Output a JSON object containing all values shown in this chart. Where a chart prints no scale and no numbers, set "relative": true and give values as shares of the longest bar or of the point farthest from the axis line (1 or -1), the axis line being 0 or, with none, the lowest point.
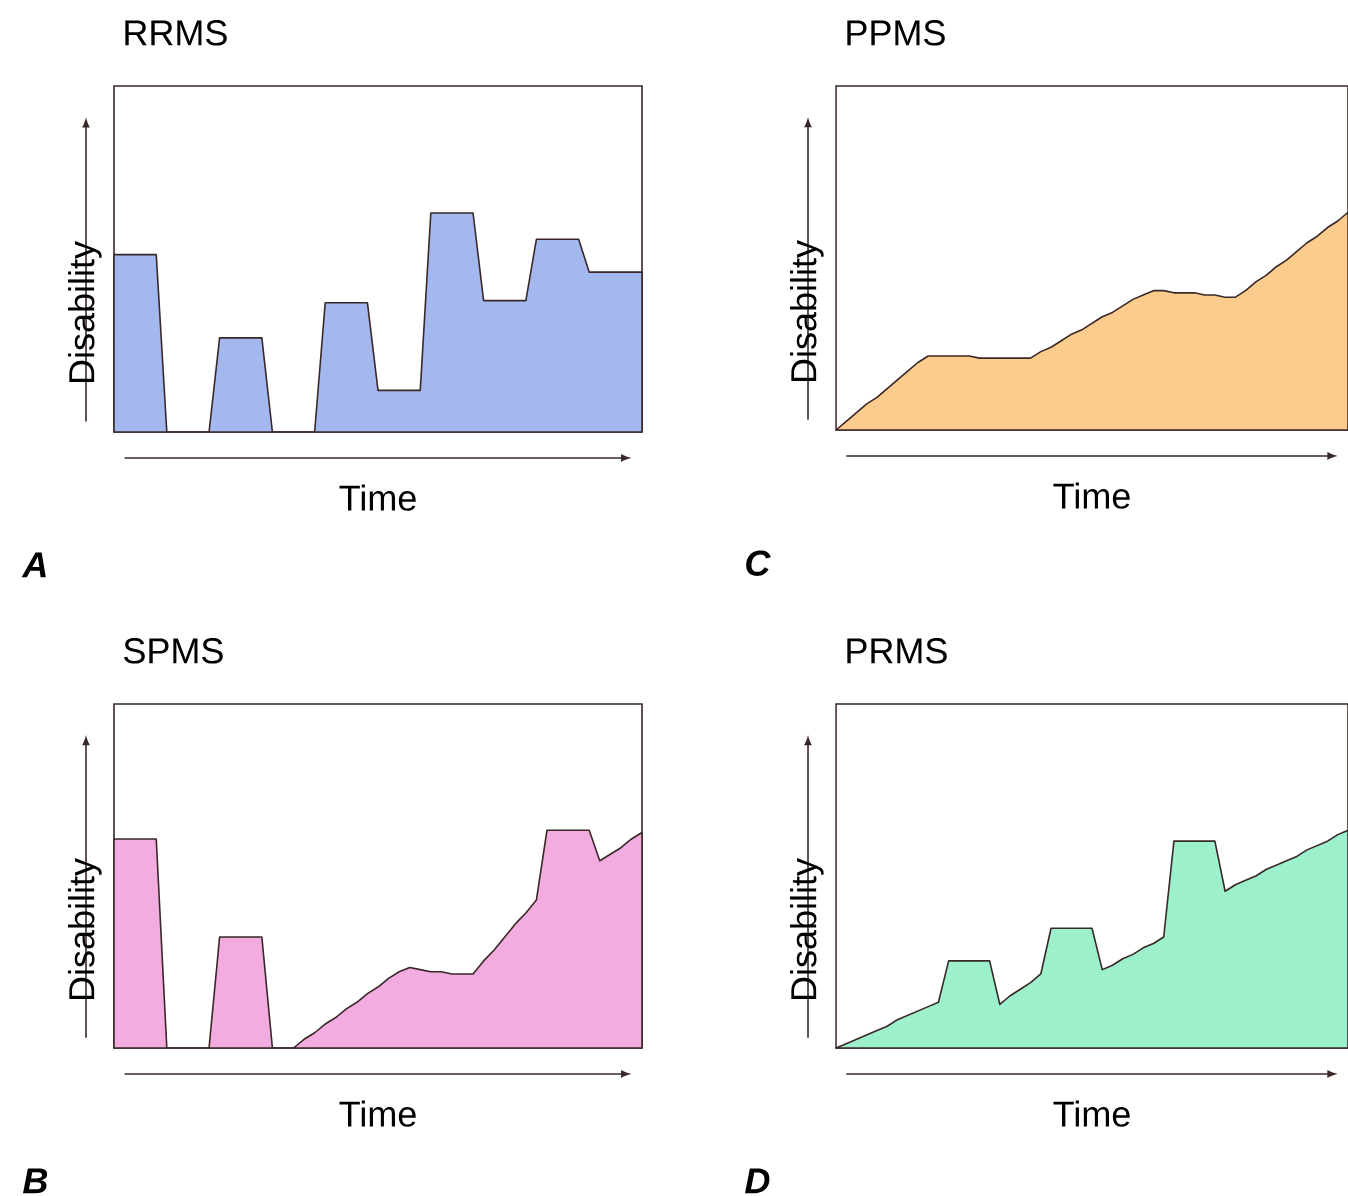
{
  "chart_data": [
    {
      "type": "area",
      "title": "RRMS",
      "xlabel": "Time",
      "ylabel": "Disability",
      "annotations": [
        "A"
      ],
      "relative": true,
      "color": "#a4b8f0",
      "categories": [
        null,
        null,
        null,
        null,
        null,
        null,
        null,
        null,
        null,
        null,
        null,
        null,
        null,
        null,
        null,
        null,
        null,
        null,
        null,
        null,
        null,
        null,
        null,
        null,
        null,
        null,
        null,
        null,
        null,
        null,
        null,
        null,
        null,
        null,
        null,
        null,
        null,
        null,
        null,
        null,
        null,
        null,
        null,
        null,
        null,
        null,
        null,
        null,
        null,
        null,
        null
      ],
      "values": [
        0.81,
        0.81,
        0.81,
        0.81,
        0.81,
        0,
        0,
        0,
        0,
        0,
        0.43,
        0.43,
        0.43,
        0.43,
        0.43,
        0,
        0,
        0,
        0,
        0,
        0.59,
        0.59,
        0.59,
        0.59,
        0.59,
        0.19,
        0.19,
        0.19,
        0.19,
        0.19,
        1,
        1,
        1,
        1,
        1,
        0.6,
        0.6,
        0.6,
        0.6,
        0.6,
        0.88,
        0.88,
        0.88,
        0.88,
        0.88,
        0.73,
        0.73,
        0.73,
        0.73,
        0.73,
        0.73
      ]
    },
    {
      "type": "area",
      "title": "PPMS",
      "xlabel": "Time",
      "ylabel": "Disability",
      "annotations": [
        "C"
      ],
      "relative": true,
      "color": "#fccc8c",
      "categories": [
        null,
        null,
        null,
        null,
        null,
        null,
        null,
        null,
        null,
        null,
        null,
        null,
        null,
        null,
        null,
        null,
        null,
        null,
        null,
        null,
        null,
        null,
        null,
        null,
        null,
        null,
        null,
        null,
        null,
        null,
        null,
        null,
        null,
        null,
        null,
        null,
        null,
        null,
        null,
        null,
        null,
        null,
        null,
        null,
        null,
        null,
        null,
        null,
        null,
        null,
        null
      ],
      "values": [
        0,
        0.04,
        0.08,
        0.12,
        0.15,
        0.19,
        0.23,
        0.27,
        0.31,
        0.34,
        0.34,
        0.34,
        0.34,
        0.34,
        0.33,
        0.33,
        0.33,
        0.33,
        0.33,
        0.33,
        0.36,
        0.38,
        0.41,
        0.44,
        0.46,
        0.49,
        0.52,
        0.54,
        0.57,
        0.6,
        0.62,
        0.64,
        0.64,
        0.63,
        0.63,
        0.63,
        0.62,
        0.62,
        0.61,
        0.61,
        0.64,
        0.68,
        0.71,
        0.75,
        0.78,
        0.82,
        0.86,
        0.89,
        0.93,
        0.96,
        1
      ]
    },
    {
      "type": "area",
      "title": "SPMS",
      "xlabel": "Time",
      "ylabel": "Disability",
      "annotations": [
        "B"
      ],
      "relative": true,
      "color": "#f3acdf",
      "categories": [
        null,
        null,
        null,
        null,
        null,
        null,
        null,
        null,
        null,
        null,
        null,
        null,
        null,
        null,
        null,
        null,
        null,
        null,
        null,
        null,
        null,
        null,
        null,
        null,
        null,
        null,
        null,
        null,
        null,
        null,
        null,
        null,
        null,
        null,
        null,
        null,
        null,
        null,
        null,
        null,
        null,
        null,
        null,
        null,
        null,
        null,
        null,
        null,
        null,
        null,
        null
      ],
      "values": [
        0.96,
        0.96,
        0.96,
        0.96,
        0.96,
        0,
        0,
        0,
        0,
        0,
        0.51,
        0.51,
        0.51,
        0.51,
        0.51,
        0,
        0,
        0,
        0.04,
        0.07,
        0.11,
        0.14,
        0.18,
        0.21,
        0.25,
        0.28,
        0.32,
        0.35,
        0.37,
        0.36,
        0.35,
        0.35,
        0.34,
        0.34,
        0.34,
        0.4,
        0.45,
        0.51,
        0.57,
        0.62,
        0.68,
        1,
        1,
        1,
        1,
        1,
        0.86,
        0.89,
        0.92,
        0.96,
        0.99
      ]
    },
    {
      "type": "area",
      "title": "PRMS",
      "xlabel": "Time",
      "ylabel": "Disability",
      "annotations": [
        "D"
      ],
      "relative": true,
      "color": "#9cf0cc",
      "categories": [
        null,
        null,
        null,
        null,
        null,
        null,
        null,
        null,
        null,
        null,
        null,
        null,
        null,
        null,
        null,
        null,
        null,
        null,
        null,
        null,
        null,
        null,
        null,
        null,
        null,
        null,
        null,
        null,
        null,
        null,
        null,
        null,
        null,
        null,
        null,
        null,
        null,
        null,
        null,
        null,
        null,
        null,
        null,
        null,
        null,
        null,
        null,
        null,
        null,
        null,
        null
      ],
      "values": [
        0,
        0.02,
        0.04,
        0.06,
        0.08,
        0.1,
        0.13,
        0.15,
        0.17,
        0.19,
        0.21,
        0.4,
        0.4,
        0.4,
        0.4,
        0.4,
        0.2,
        0.24,
        0.27,
        0.3,
        0.34,
        0.55,
        0.55,
        0.55,
        0.55,
        0.55,
        0.36,
        0.38,
        0.41,
        0.43,
        0.46,
        0.48,
        0.51,
        0.95,
        0.95,
        0.95,
        0.95,
        0.95,
        0.72,
        0.75,
        0.77,
        0.79,
        0.82,
        0.84,
        0.86,
        0.88,
        0.91,
        0.93,
        0.95,
        0.98,
        1
      ]
    }
  ]
}
